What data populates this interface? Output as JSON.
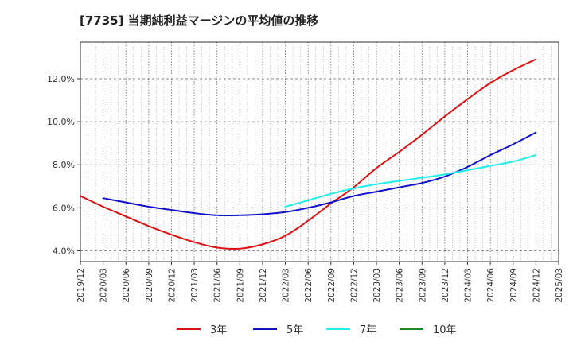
{
  "chart_data": {
    "type": "line",
    "title": "[7735]  当期純利益マージンの平均値の推移",
    "xlabel": "",
    "ylabel": "",
    "x": [
      "2019/12",
      "2020/03",
      "2020/06",
      "2020/09",
      "2020/12",
      "2021/03",
      "2021/06",
      "2021/09",
      "2021/12",
      "2022/03",
      "2022/06",
      "2022/09",
      "2022/12",
      "2023/03",
      "2023/06",
      "2023/09",
      "2023/12",
      "2024/03",
      "2024/06",
      "2024/09",
      "2024/12",
      "2025/03"
    ],
    "ylim": [
      3.5,
      13.7
    ],
    "yticks": [
      4.0,
      6.0,
      8.0,
      10.0,
      12.0
    ],
    "ytick_labels": [
      "4.0%",
      "6.0%",
      "8.0%",
      "10.0%",
      "12.0%"
    ],
    "grid": true,
    "legend_position": "bottom",
    "series": [
      {
        "name": "3年",
        "color": "#dd1111",
        "values": [
          6.55,
          6.05,
          5.6,
          5.15,
          4.75,
          4.4,
          4.15,
          4.1,
          4.3,
          4.7,
          5.4,
          6.2,
          6.95,
          7.85,
          8.6,
          9.4,
          10.25,
          11.05,
          11.8,
          12.4,
          12.9,
          null
        ]
      },
      {
        "name": "5年",
        "color": "#1111cc",
        "values": [
          null,
          6.45,
          6.25,
          6.05,
          5.9,
          5.75,
          5.65,
          5.65,
          5.7,
          5.8,
          6.0,
          6.25,
          6.55,
          6.75,
          6.95,
          7.15,
          7.45,
          7.9,
          8.45,
          8.95,
          9.5,
          null
        ]
      },
      {
        "name": "7年",
        "color": "#22eeee",
        "values": [
          null,
          null,
          null,
          null,
          null,
          null,
          null,
          null,
          null,
          6.05,
          6.35,
          6.65,
          6.9,
          7.1,
          7.25,
          7.4,
          7.55,
          7.75,
          7.95,
          8.15,
          8.45,
          null
        ]
      },
      {
        "name": "10年",
        "color": "#228822",
        "values": [
          null,
          null,
          null,
          null,
          null,
          null,
          null,
          null,
          null,
          null,
          null,
          null,
          null,
          null,
          null,
          null,
          null,
          null,
          null,
          null,
          null,
          null
        ]
      }
    ]
  }
}
